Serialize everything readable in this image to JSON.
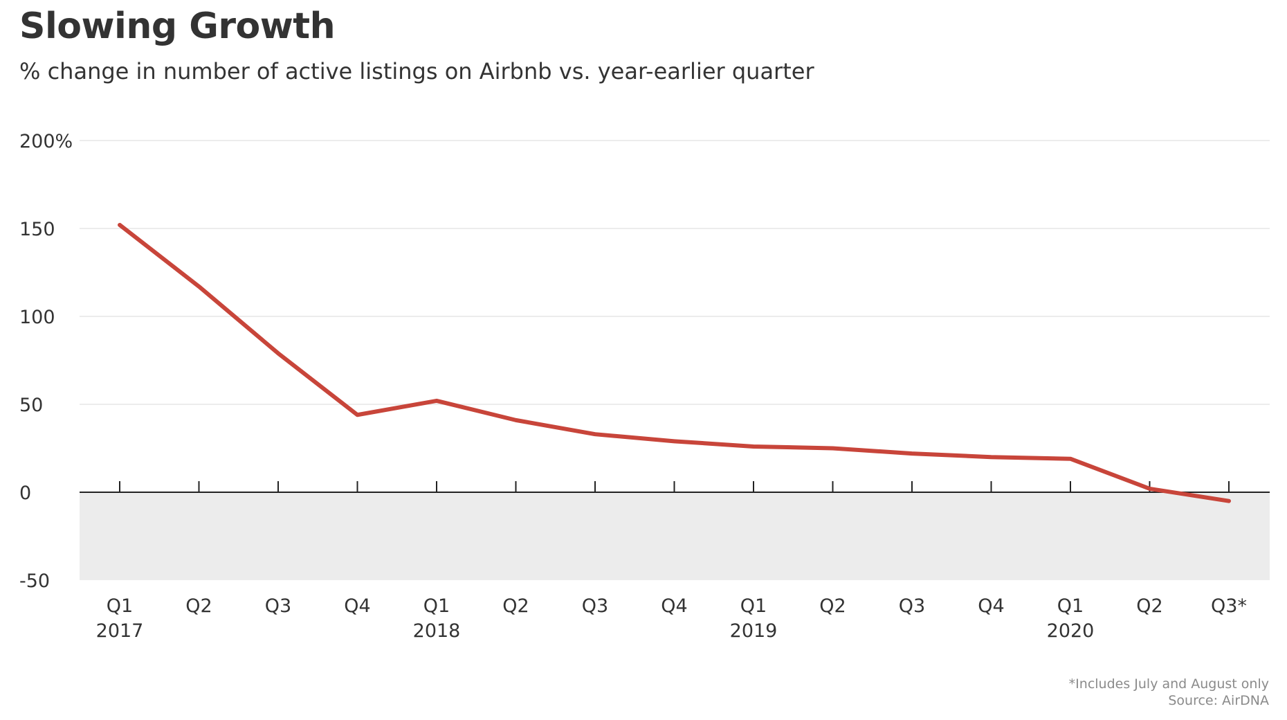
{
  "chart_data": {
    "type": "line",
    "title": "Slowing Growth",
    "subtitle": "% change in number of active listings on Airbnb vs. year-earlier quarter",
    "xlabel": "",
    "ylabel": "",
    "categories": [
      "Q1",
      "Q2",
      "Q3",
      "Q4",
      "Q1",
      "Q2",
      "Q3",
      "Q4",
      "Q1",
      "Q2",
      "Q3",
      "Q4",
      "Q1",
      "Q2",
      "Q3*"
    ],
    "category_years": [
      "2017",
      "",
      "",
      "",
      "2018",
      "",
      "",
      "",
      "2019",
      "",
      "",
      "",
      "2020",
      "",
      ""
    ],
    "series": [
      {
        "values": [
          152,
          117,
          79,
          44,
          52,
          41,
          33,
          29,
          26,
          25,
          22,
          20,
          19,
          2,
          -5
        ],
        "color": "#c8453a"
      }
    ],
    "ylim": [
      -50,
      200
    ],
    "y_ticks": [
      200,
      150,
      100,
      50,
      0,
      -50
    ],
    "y_tick_labels": [
      "200%",
      "150",
      "100",
      "50",
      "0",
      "-50"
    ],
    "grid": true,
    "negative_region_color": "#ececec",
    "gridline_color": "#e6e6e6",
    "zero_line_color": "#222222",
    "legend": "none"
  },
  "footnotes": {
    "note": "*Includes July and August only",
    "source": "Source: AirDNA"
  }
}
